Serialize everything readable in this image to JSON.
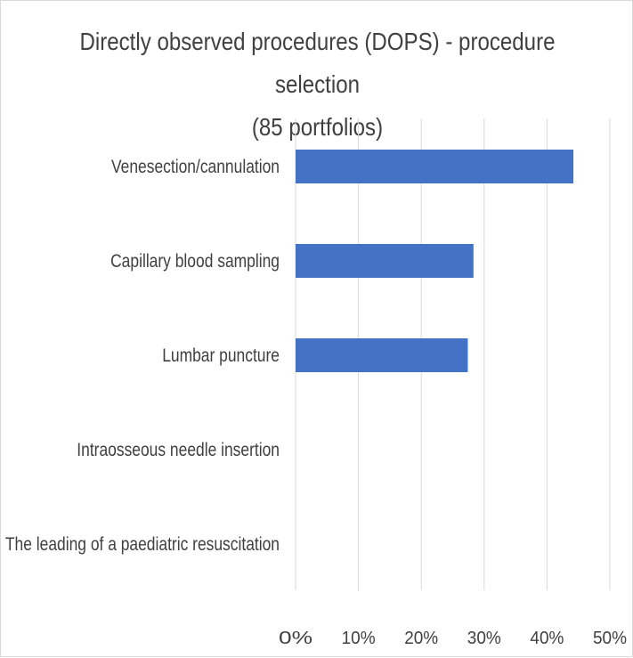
{
  "chart_data": {
    "type": "bar",
    "orientation": "horizontal",
    "title": "Directly observed procedures (DOPS) - procedure selection",
    "subtitle": "(85 portfolios)",
    "categories": [
      "Venesection/cannulation",
      "Capillary blood sampling",
      "Lumbar puncture",
      "Intraosseous needle insertion",
      "The leading of a paediatric resuscitation"
    ],
    "values": [
      44.2,
      28.3,
      27.4,
      0,
      0
    ],
    "xlim": [
      0,
      50
    ],
    "xticks": [
      "0%",
      "10%",
      "20%",
      "30%",
      "40%",
      "50%"
    ],
    "xlabel": "",
    "ylabel": "",
    "grid": true,
    "legend": "none",
    "colors": {
      "bar": "#4472c4",
      "grid": "#d9d9d9",
      "text": "#404040"
    }
  }
}
